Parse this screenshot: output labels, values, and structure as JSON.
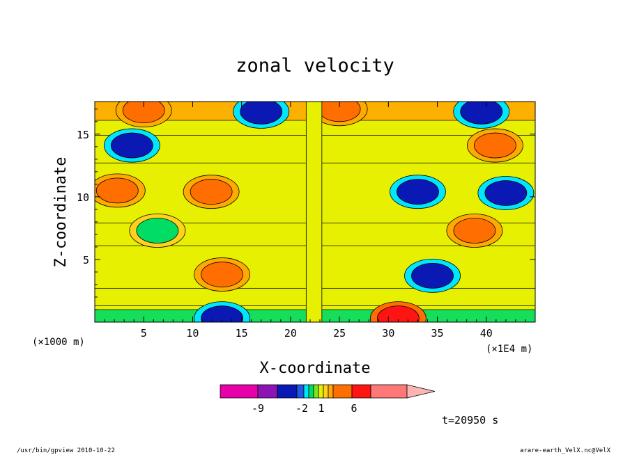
{
  "chart_data": {
    "type": "heatmap",
    "title": "zonal velocity",
    "xlabel": "X-coordinate",
    "ylabel": "Z-coordinate",
    "x_unit_label": "(×1000 m)",
    "x_unit_label_right": "(×1E4 m)",
    "xlim": [
      0,
      45
    ],
    "ylim": [
      0,
      17.6
    ],
    "x_ticks": [
      5,
      10,
      15,
      20,
      25,
      30,
      35,
      40
    ],
    "y_ticks": [
      5,
      10,
      15
    ],
    "x_tick_labels": [
      "5",
      "10",
      "15",
      "20",
      "25",
      "30",
      "35",
      "40"
    ],
    "y_tick_labels": [
      "5",
      "10",
      "15"
    ],
    "colorbar": {
      "colors": [
        "#e600aa",
        "#8c14b4",
        "#0a19b4",
        "#1e5ae6",
        "#00e6ff",
        "#00dc64",
        "#78e61e",
        "#e6f000",
        "#ffd21e",
        "#ffaa00",
        "#ff6e00",
        "#ff1414",
        "#ff7878"
      ],
      "overflow_color": "#ffb4b4",
      "tick_labels": [
        "-9",
        "-2",
        "1",
        "6"
      ],
      "levels": [
        -9,
        -2,
        1,
        6
      ]
    },
    "features": [
      {
        "x": 5.0,
        "z": 16.9,
        "u": 5
      },
      {
        "x": 25.0,
        "z": 17.0,
        "u": 5
      },
      {
        "x": 17.0,
        "z": 16.8,
        "u": -6
      },
      {
        "x": 39.5,
        "z": 16.8,
        "u": -6
      },
      {
        "x": 3.8,
        "z": 14.1,
        "u": -6
      },
      {
        "x": 40.9,
        "z": 14.1,
        "u": 5
      },
      {
        "x": 2.3,
        "z": 10.5,
        "u": 5
      },
      {
        "x": 11.9,
        "z": 10.4,
        "u": 4
      },
      {
        "x": 33.0,
        "z": 10.4,
        "u": -6
      },
      {
        "x": 42.0,
        "z": 10.3,
        "u": -6
      },
      {
        "x": 6.4,
        "z": 7.3,
        "u": -2
      },
      {
        "x": 38.8,
        "z": 7.3,
        "u": 4
      },
      {
        "x": 34.5,
        "z": 3.7,
        "u": -6
      },
      {
        "x": 13.0,
        "z": 3.8,
        "u": 4
      },
      {
        "x": 13.0,
        "z": 0.3,
        "u": -6
      },
      {
        "x": 31.0,
        "z": 0.3,
        "u": 6
      }
    ],
    "time_label": "t=20950 s"
  },
  "footer": {
    "left": "/usr/bin/gpview  2010-10-22",
    "right": "arare-earth_VelX.nc@VelX"
  }
}
